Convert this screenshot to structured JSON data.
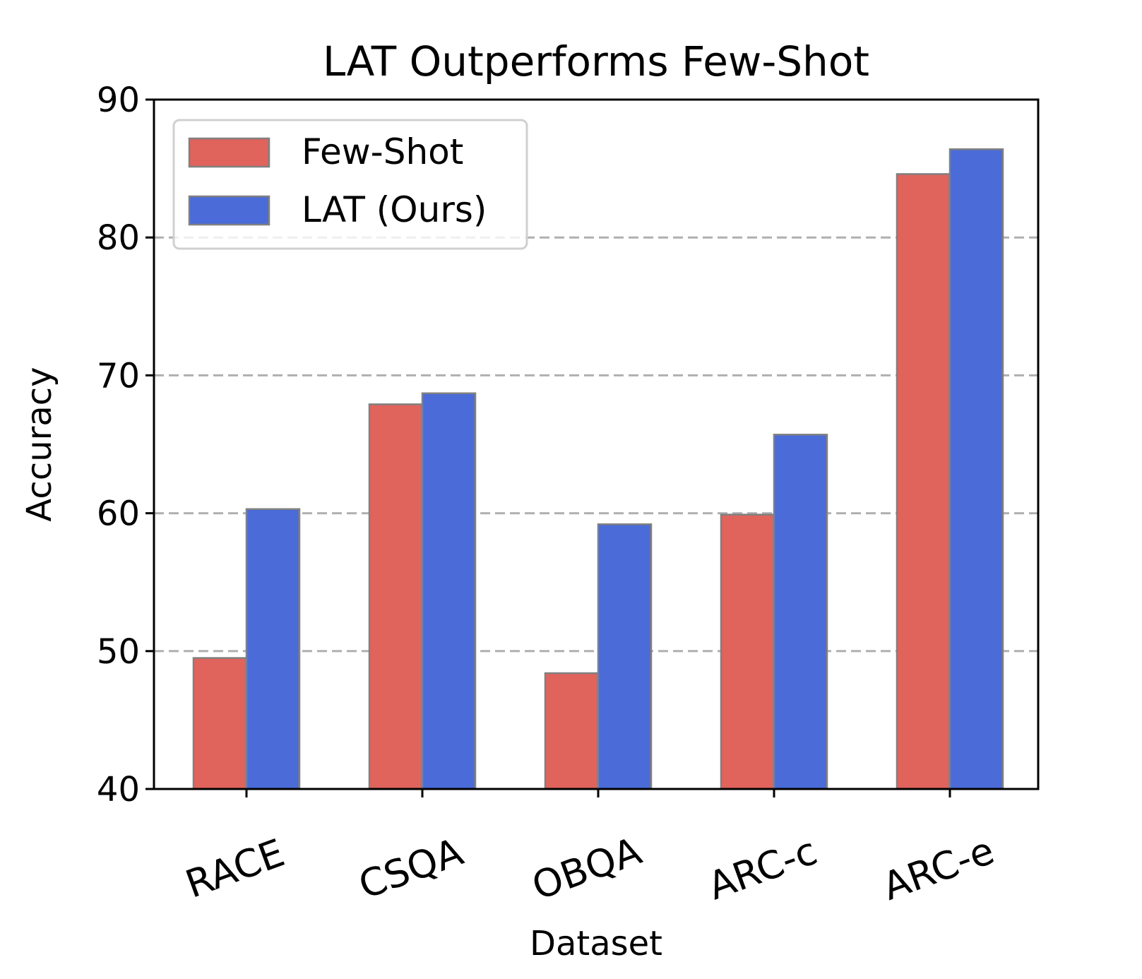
{
  "chart_data": {
    "type": "bar",
    "title": "LAT Outperforms Few-Shot",
    "xlabel": "Dataset",
    "ylabel": "Accuracy",
    "ylim": [
      40,
      90
    ],
    "yticks": [
      40,
      50,
      60,
      70,
      80,
      90
    ],
    "categories": [
      "RACE",
      "CSQA",
      "OBQA",
      "ARC-c",
      "ARC-e"
    ],
    "series": [
      {
        "name": "Few-Shot",
        "color": "#e0635c",
        "values": [
          49.5,
          67.9,
          48.4,
          59.9,
          84.6
        ]
      },
      {
        "name": "LAT (Ours)",
        "color": "#4a6bd8",
        "values": [
          60.3,
          68.7,
          59.2,
          65.7,
          86.4
        ]
      }
    ],
    "grid": "horizontal dashed",
    "legend": "top-left",
    "bar_edge_color": "#808080"
  }
}
